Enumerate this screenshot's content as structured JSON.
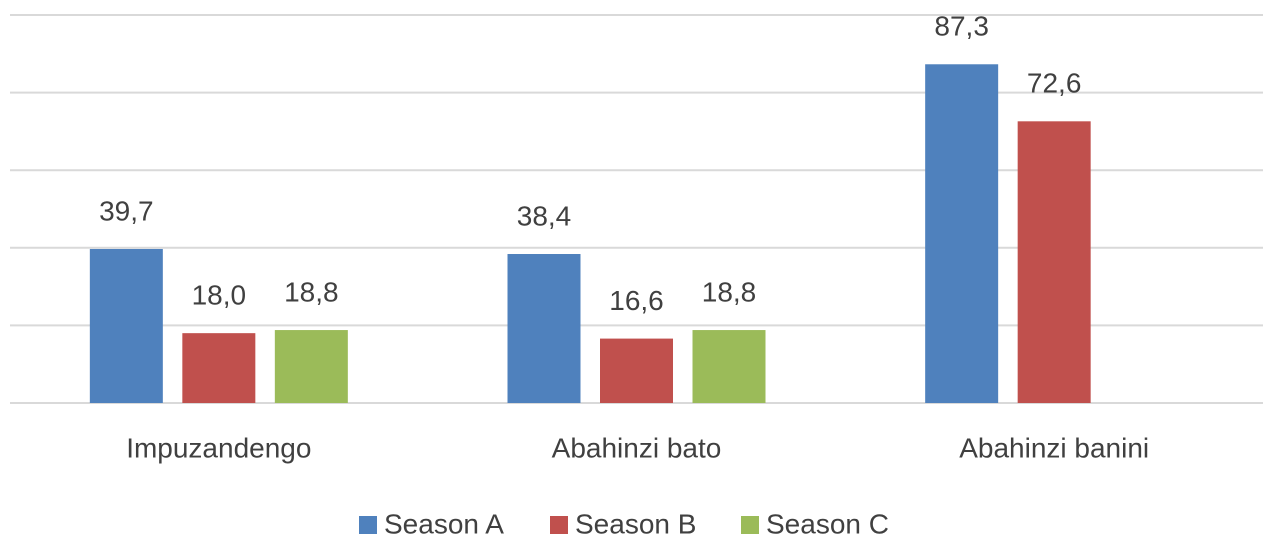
{
  "chart_data": {
    "type": "bar",
    "categories": [
      "Impuzandengo",
      "Abahinzi bato",
      "Abahinzi banini"
    ],
    "series": [
      {
        "name": "Season A",
        "color": "#4f81bd",
        "values": [
          39.7,
          38.4,
          87.3
        ],
        "value_labels": [
          "39,7",
          "38,4",
          "87,3"
        ]
      },
      {
        "name": "Season B",
        "color": "#c0504d",
        "values": [
          18.0,
          16.6,
          72.6
        ],
        "value_labels": [
          "18,0",
          "16,6",
          "72,6"
        ]
      },
      {
        "name": "Season C",
        "color": "#9bbb59",
        "values": [
          18.8,
          18.8,
          null
        ],
        "value_labels": [
          "18,8",
          "18,8",
          null
        ]
      }
    ],
    "ylim": [
      0,
      100
    ],
    "yticks": [
      0,
      20,
      40,
      60,
      80,
      100
    ],
    "grid": true,
    "legend": "bottom"
  }
}
